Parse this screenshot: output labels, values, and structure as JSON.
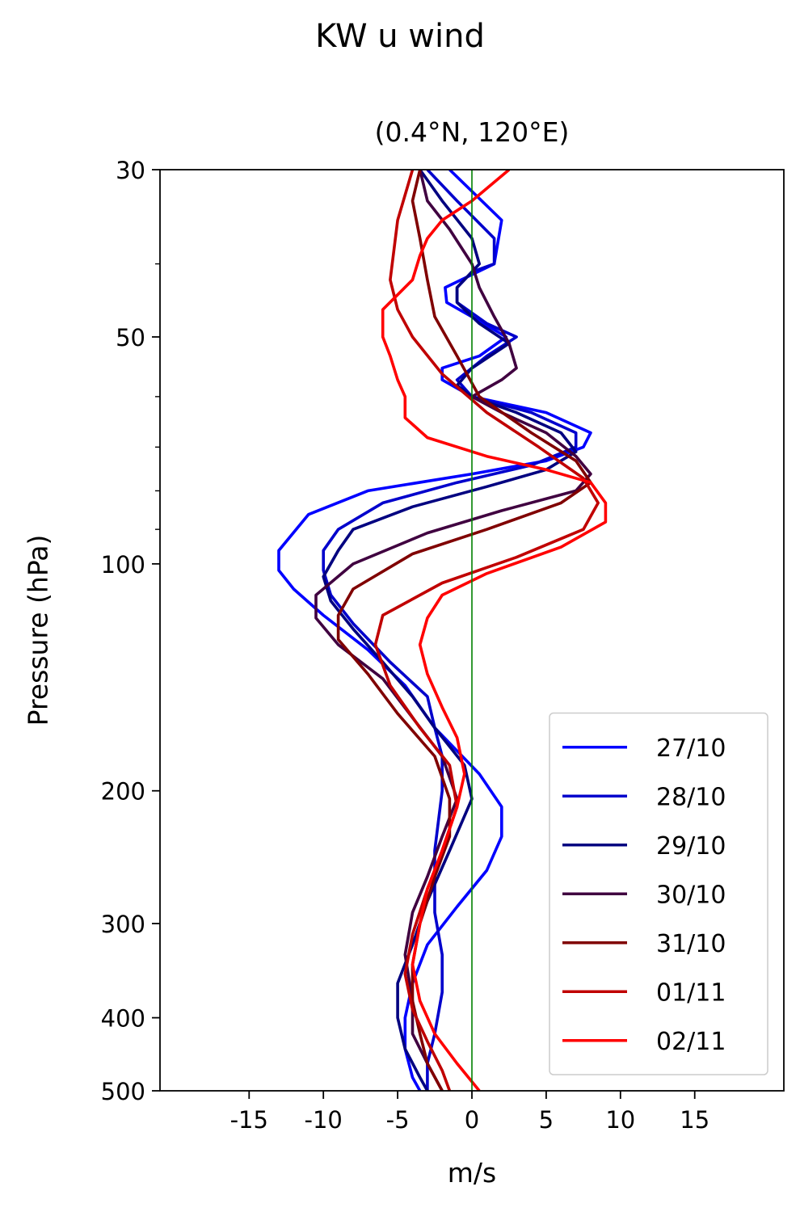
{
  "figure": {
    "suptitle": "KW u wind",
    "subtitle": "(0.4°N, 120°E)"
  },
  "chart_data": {
    "type": "line",
    "title": "(0.4°N, 120°E)",
    "xlabel": "m/s",
    "ylabel": "Pressure (hPa)",
    "xlim": [
      -21,
      21
    ],
    "ylim": [
      500,
      30
    ],
    "y_scale": "log",
    "x_ticks": [
      -15,
      -10,
      -5,
      0,
      5,
      10,
      15
    ],
    "x_tick_labels": [
      "-15",
      "-10",
      "-5",
      "0",
      "5",
      "10",
      "15"
    ],
    "y_ticks": [
      30,
      50,
      100,
      200,
      300,
      400,
      500
    ],
    "y_tick_labels": [
      "30",
      "50",
      "100",
      "200",
      "300",
      "400",
      "500"
    ],
    "y_minor_ticks": [
      40,
      60,
      70,
      80,
      90
    ],
    "reference_line": {
      "x": 0,
      "color": "#008000"
    },
    "legend_position": "lower-right",
    "series": [
      {
        "name": "27/10",
        "color": "#0000ff",
        "points": [
          [
            -1.5,
            30
          ],
          [
            2,
            35
          ],
          [
            1.5,
            40
          ],
          [
            -1.8,
            43
          ],
          [
            -1.7,
            45
          ],
          [
            0.8,
            48
          ],
          [
            2.3,
            50
          ],
          [
            0.5,
            53
          ],
          [
            -2,
            55
          ],
          [
            -2,
            57
          ],
          [
            0,
            60
          ],
          [
            5,
            63
          ],
          [
            8,
            67
          ],
          [
            7.5,
            70
          ],
          [
            5,
            73
          ],
          [
            0,
            76
          ],
          [
            -7,
            80
          ],
          [
            -11,
            86
          ],
          [
            -13,
            96
          ],
          [
            -13,
            102
          ],
          [
            -12,
            108
          ],
          [
            -10,
            117
          ],
          [
            -7,
            130
          ],
          [
            -4.5,
            145
          ],
          [
            -2.5,
            165
          ],
          [
            0.5,
            190
          ],
          [
            2,
            210
          ],
          [
            2,
            230
          ],
          [
            1,
            255
          ],
          [
            -1,
            285
          ],
          [
            -3,
            320
          ],
          [
            -4,
            360
          ],
          [
            -4.5,
            400
          ],
          [
            -4.5,
            440
          ],
          [
            -4,
            480
          ],
          [
            -3.5,
            500
          ]
        ]
      },
      {
        "name": "28/10",
        "color": "#0000cc",
        "points": [
          [
            -3,
            30
          ],
          [
            -1,
            33
          ],
          [
            1.5,
            37
          ],
          [
            1.5,
            40
          ],
          [
            0,
            41
          ],
          [
            -1,
            43
          ],
          [
            -1,
            45
          ],
          [
            1,
            48
          ],
          [
            3,
            50
          ],
          [
            1,
            53
          ],
          [
            -1,
            57
          ],
          [
            0,
            60
          ],
          [
            4,
            63
          ],
          [
            7,
            67
          ],
          [
            7,
            70
          ],
          [
            4,
            74
          ],
          [
            -1,
            78
          ],
          [
            -6,
            83
          ],
          [
            -9,
            90
          ],
          [
            -10,
            96
          ],
          [
            -10,
            102
          ],
          [
            -9.5,
            110
          ],
          [
            -8,
            120
          ],
          [
            -5.5,
            135
          ],
          [
            -3,
            150
          ],
          [
            -2.5,
            165
          ],
          [
            -2,
            180
          ],
          [
            -2,
            200
          ],
          [
            -2.5,
            240
          ],
          [
            -2.5,
            290
          ],
          [
            -2,
            330
          ],
          [
            -2,
            370
          ],
          [
            -2.5,
            420
          ],
          [
            -3,
            460
          ],
          [
            -3,
            500
          ]
        ]
      },
      {
        "name": "29/10",
        "color": "#000080",
        "points": [
          [
            -3.5,
            30
          ],
          [
            -2,
            33
          ],
          [
            0,
            37
          ],
          [
            0.5,
            40
          ],
          [
            -1,
            43
          ],
          [
            -1,
            45
          ],
          [
            0.5,
            48
          ],
          [
            2.5,
            51
          ],
          [
            0,
            55
          ],
          [
            -1,
            58
          ],
          [
            0,
            60
          ],
          [
            3,
            63
          ],
          [
            6,
            67
          ],
          [
            7,
            71
          ],
          [
            5,
            75
          ],
          [
            1,
            79
          ],
          [
            -4,
            84
          ],
          [
            -8,
            90
          ],
          [
            -9,
            96
          ],
          [
            -10,
            104
          ],
          [
            -9.5,
            112
          ],
          [
            -8,
            122
          ],
          [
            -6,
            135
          ],
          [
            -4,
            150
          ],
          [
            -2.5,
            165
          ],
          [
            -0.5,
            185
          ],
          [
            0,
            205
          ],
          [
            -1.5,
            240
          ],
          [
            -3,
            280
          ],
          [
            -4,
            320
          ],
          [
            -5,
            360
          ],
          [
            -5,
            400
          ],
          [
            -4.5,
            440
          ],
          [
            -3.5,
            480
          ],
          [
            -3,
            500
          ]
        ]
      },
      {
        "name": "30/10",
        "color": "#400040",
        "points": [
          [
            -3.5,
            30
          ],
          [
            -3,
            33
          ],
          [
            -1.5,
            36
          ],
          [
            0,
            40
          ],
          [
            0.5,
            43
          ],
          [
            1.5,
            47
          ],
          [
            2.5,
            51
          ],
          [
            3,
            55
          ],
          [
            2,
            57
          ],
          [
            0,
            60
          ],
          [
            2,
            63
          ],
          [
            5,
            67
          ],
          [
            7,
            72
          ],
          [
            8,
            76
          ],
          [
            7,
            80
          ],
          [
            2,
            85
          ],
          [
            -3,
            91
          ],
          [
            -8,
            100
          ],
          [
            -10.5,
            110
          ],
          [
            -10.5,
            118
          ],
          [
            -9,
            128
          ],
          [
            -6,
            142
          ],
          [
            -4,
            160
          ],
          [
            -2,
            180
          ],
          [
            -1,
            205
          ],
          [
            -2,
            230
          ],
          [
            -3,
            260
          ],
          [
            -4,
            290
          ],
          [
            -4.5,
            330
          ],
          [
            -4,
            380
          ],
          [
            -4,
            420
          ],
          [
            -3,
            460
          ],
          [
            -2,
            500
          ]
        ]
      },
      {
        "name": "31/10",
        "color": "#800000",
        "points": [
          [
            -3.5,
            30
          ],
          [
            -4,
            33
          ],
          [
            -3.5,
            37
          ],
          [
            -3,
            42
          ],
          [
            -2.5,
            47
          ],
          [
            -1,
            53
          ],
          [
            0.5,
            60
          ],
          [
            4,
            67
          ],
          [
            7,
            73
          ],
          [
            8,
            78
          ],
          [
            6,
            83
          ],
          [
            1,
            90
          ],
          [
            -4,
            97
          ],
          [
            -8,
            108
          ],
          [
            -9,
            117
          ],
          [
            -9,
            126
          ],
          [
            -7,
            140
          ],
          [
            -5,
            158
          ],
          [
            -2.5,
            180
          ],
          [
            -1.5,
            205
          ],
          [
            -1.5,
            230
          ],
          [
            -2.5,
            260
          ],
          [
            -3.5,
            300
          ],
          [
            -4,
            340
          ],
          [
            -4,
            380
          ],
          [
            -3.5,
            420
          ],
          [
            -3,
            460
          ],
          [
            -2,
            500
          ]
        ]
      },
      {
        "name": "01/11",
        "color": "#c00000",
        "points": [
          [
            -4,
            30
          ],
          [
            -5,
            35
          ],
          [
            -5.5,
            42
          ],
          [
            -5,
            46
          ],
          [
            -4,
            50
          ],
          [
            -2,
            56
          ],
          [
            1,
            63
          ],
          [
            4.5,
            70
          ],
          [
            7.5,
            77
          ],
          [
            8.5,
            83
          ],
          [
            7.5,
            90
          ],
          [
            3,
            98
          ],
          [
            -2,
            106
          ],
          [
            -6,
            117
          ],
          [
            -6.5,
            128
          ],
          [
            -5.5,
            145
          ],
          [
            -3.5,
            165
          ],
          [
            -1.5,
            185
          ],
          [
            -1,
            210
          ],
          [
            -2,
            240
          ],
          [
            -3,
            270
          ],
          [
            -4,
            310
          ],
          [
            -4.5,
            350
          ],
          [
            -4,
            390
          ],
          [
            -3,
            430
          ],
          [
            -2,
            470
          ],
          [
            -1.5,
            500
          ]
        ]
      },
      {
        "name": "02/11",
        "color": "#ff0000",
        "points": [
          [
            2.5,
            30
          ],
          [
            0,
            33
          ],
          [
            -2,
            35
          ],
          [
            -3,
            37
          ],
          [
            -3.5,
            39
          ],
          [
            -4,
            42
          ],
          [
            -6,
            46
          ],
          [
            -6,
            50
          ],
          [
            -5.5,
            53
          ],
          [
            -5,
            57
          ],
          [
            -4.5,
            60
          ],
          [
            -4.5,
            64
          ],
          [
            -3,
            68
          ],
          [
            1,
            72
          ],
          [
            5,
            75
          ],
          [
            8,
            78
          ],
          [
            9,
            83
          ],
          [
            9,
            88
          ],
          [
            6,
            95
          ],
          [
            1,
            103
          ],
          [
            -2,
            110
          ],
          [
            -3,
            118
          ],
          [
            -3.5,
            128
          ],
          [
            -3,
            140
          ],
          [
            -2,
            155
          ],
          [
            -1,
            170
          ],
          [
            -0.5,
            190
          ],
          [
            -1,
            210
          ],
          [
            -2,
            240
          ],
          [
            -3,
            270
          ],
          [
            -3.5,
            300
          ],
          [
            -4,
            340
          ],
          [
            -3.5,
            380
          ],
          [
            -2.5,
            420
          ],
          [
            -1,
            460
          ],
          [
            0.5,
            500
          ]
        ]
      }
    ]
  }
}
